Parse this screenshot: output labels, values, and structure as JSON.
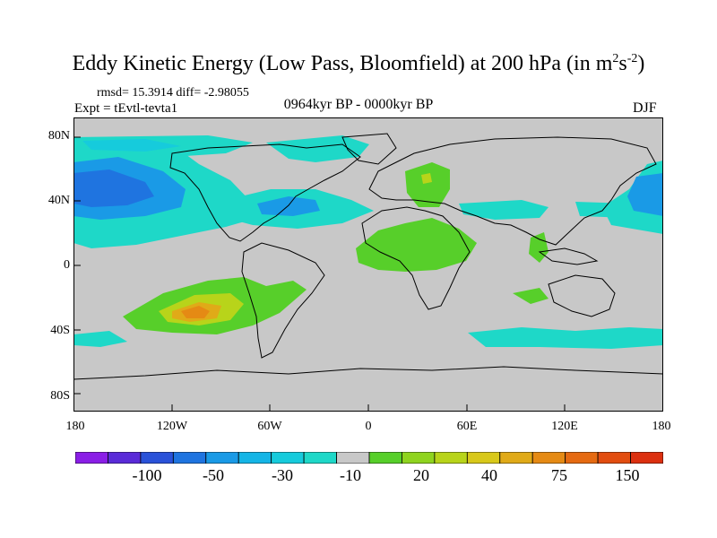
{
  "title": {
    "main": "Eddy Kinetic Energy (Low Pass, Bloomfield) at 200 hPa (in m",
    "sup1": "2",
    "mid": "s",
    "sup2": "-2",
    "end": ")"
  },
  "stats": {
    "rmsd_diff": "rmsd= 15.3914 diff= -2.98055"
  },
  "experiment": "Expt = tEvtl-tevta1",
  "period": "0964kyr BP - 0000kyr BP",
  "season": "DJF",
  "lat_ticks": [
    "80N",
    "40N",
    "0",
    "40S",
    "80S"
  ],
  "lon_ticks": [
    "180",
    "120W",
    "60W",
    "0",
    "60E",
    "120E",
    "180"
  ],
  "colorbar": {
    "labels": [
      "-100",
      "-50",
      "-30",
      "-10",
      "20",
      "40",
      "75",
      "150"
    ],
    "colors": [
      "#8a1ee6",
      "#5a2bd8",
      "#2a52d9",
      "#1f74e0",
      "#1a9ae6",
      "#14b5e6",
      "#16cbdc",
      "#1ed8c8",
      "#c8c8c8",
      "#57cf2a",
      "#8fd41f",
      "#b8d41a",
      "#d8c81a",
      "#e0aa18",
      "#e58a14",
      "#e56a12",
      "#e24d10",
      "#dc3010"
    ]
  },
  "map": {
    "land_fill": "#c8c8c8",
    "coastline_color": "#000000"
  }
}
